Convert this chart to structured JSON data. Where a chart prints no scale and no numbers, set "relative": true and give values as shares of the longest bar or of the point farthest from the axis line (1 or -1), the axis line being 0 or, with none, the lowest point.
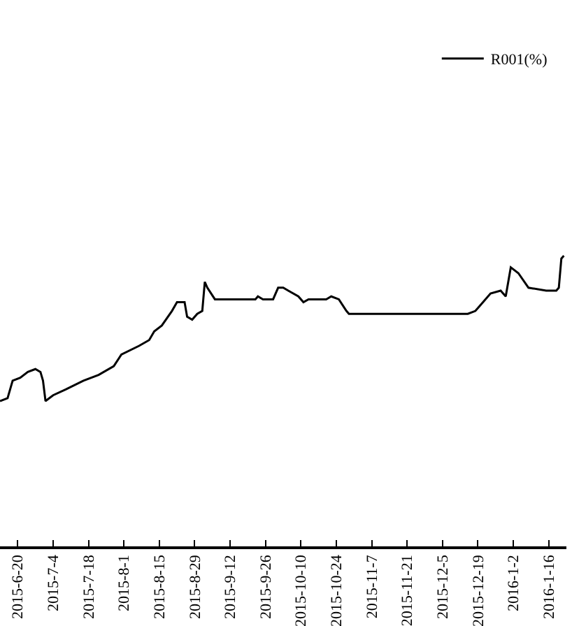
{
  "chart_data": {
    "type": "line",
    "relative": true,
    "legend": "top right",
    "marker": "none",
    "line_style": "solid",
    "xlim": [
      "2015-06-13",
      "2016-01-23"
    ],
    "xticks": [
      {
        "value": "2015-06-20",
        "label": "2015-6-20"
      },
      {
        "value": "2015-07-04",
        "label": "2015-7-4"
      },
      {
        "value": "2015-07-18",
        "label": "2015-7-18"
      },
      {
        "value": "2015-08-01",
        "label": "2015-8-1"
      },
      {
        "value": "2015-08-15",
        "label": "2015-8-15"
      },
      {
        "value": "2015-08-29",
        "label": "2015-8-29"
      },
      {
        "value": "2015-09-12",
        "label": "2015-9-12"
      },
      {
        "value": "2015-09-26",
        "label": "2015-9-26"
      },
      {
        "value": "2015-10-10",
        "label": "2015-10-10"
      },
      {
        "value": "2015-10-24",
        "label": "2015-10-24"
      },
      {
        "value": "2015-11-07",
        "label": "2015-11-7"
      },
      {
        "value": "2015-11-21",
        "label": "2015-11-21"
      },
      {
        "value": "2015-12-05",
        "label": "2015-12-5"
      },
      {
        "value": "2015-12-19",
        "label": "2015-12-19"
      },
      {
        "value": "2016-01-02",
        "label": "2016-1-2"
      },
      {
        "value": "2016-01-16",
        "label": "2016-1-16"
      }
    ],
    "x": [
      "2015-06-13",
      "2015-06-16",
      "2015-06-18",
      "2015-06-21",
      "2015-06-24",
      "2015-06-27",
      "2015-06-29",
      "2015-06-30",
      "2015-07-01",
      "2015-07-04",
      "2015-07-09",
      "2015-07-16",
      "2015-07-22",
      "2015-07-28",
      "2015-07-31",
      "2015-08-07",
      "2015-08-11",
      "2015-08-13",
      "2015-08-16",
      "2015-08-20",
      "2015-08-22",
      "2015-08-25",
      "2015-08-26",
      "2015-08-28",
      "2015-08-30",
      "2015-09-01",
      "2015-09-02",
      "2015-09-03",
      "2015-09-06",
      "2015-09-13",
      "2015-09-22",
      "2015-09-23",
      "2015-09-25",
      "2015-09-29",
      "2015-10-01",
      "2015-10-03",
      "2015-10-05",
      "2015-10-09",
      "2015-10-11",
      "2015-10-13",
      "2015-10-20",
      "2015-10-22",
      "2015-10-25",
      "2015-10-28",
      "2015-10-29",
      "2015-11-07",
      "2015-11-26",
      "2015-12-15",
      "2015-12-18",
      "2015-12-20",
      "2015-12-24",
      "2015-12-28",
      "2015-12-30",
      "2016-01-01",
      "2016-01-04",
      "2016-01-08",
      "2016-01-15",
      "2016-01-17",
      "2016-01-19",
      "2016-01-20",
      "2016-01-21",
      "2016-01-22"
    ],
    "series": [
      {
        "name": "R001(%)",
        "color": "#000000",
        "values": [
          0.5,
          0.51,
          0.57,
          0.58,
          0.6,
          0.61,
          0.6,
          0.57,
          0.5,
          0.52,
          0.54,
          0.57,
          0.59,
          0.62,
          0.66,
          0.69,
          0.71,
          0.74,
          0.76,
          0.81,
          0.84,
          0.84,
          0.79,
          0.78,
          0.8,
          0.81,
          0.91,
          0.89,
          0.85,
          0.85,
          0.85,
          0.86,
          0.85,
          0.85,
          0.89,
          0.89,
          0.88,
          0.86,
          0.84,
          0.85,
          0.85,
          0.86,
          0.85,
          0.81,
          0.8,
          0.8,
          0.8,
          0.8,
          0.81,
          0.83,
          0.87,
          0.88,
          0.86,
          0.96,
          0.94,
          0.89,
          0.88,
          0.88,
          0.88,
          0.89,
          0.99,
          1.0
        ]
      }
    ]
  }
}
